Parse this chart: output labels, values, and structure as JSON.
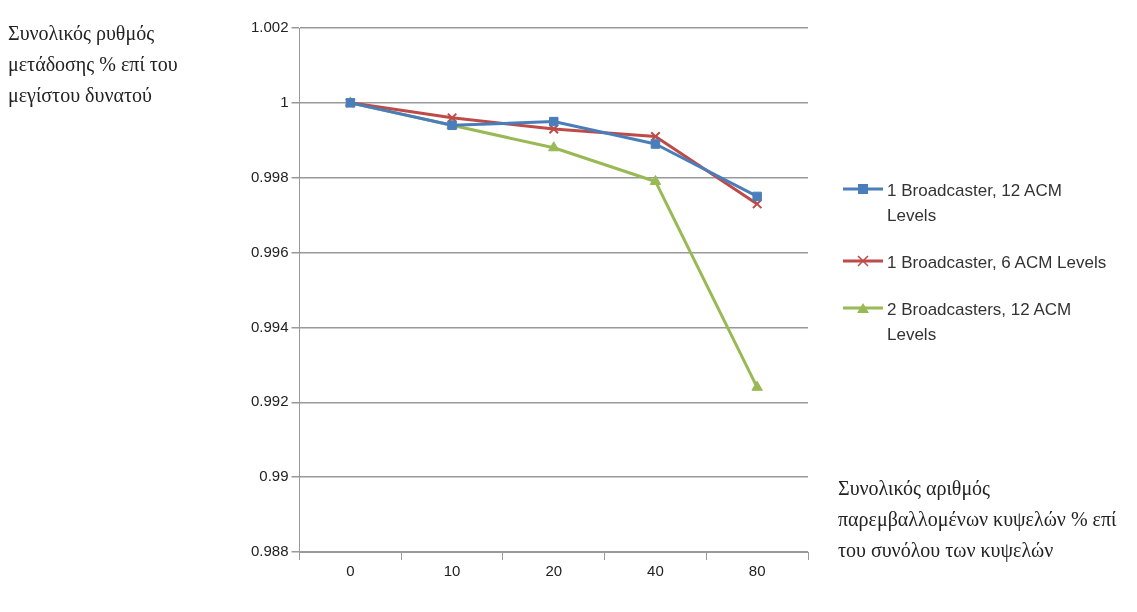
{
  "chart_data": {
    "type": "line",
    "ylabel": "Συνολικός ρυθμός μετάδοσης % επί του μεγίστου δυνατού",
    "xlabel": "Συνολικός αριθμός παρεμβαλλομένων κυψελών % επί του συνόλου των κυψελών",
    "categories": [
      "0",
      "10",
      "20",
      "40",
      "80"
    ],
    "series": [
      {
        "name": "1 Broadcaster, 12 ACM Levels",
        "color": "#4a7ebb",
        "marker": "square",
        "values": [
          1,
          0.9994,
          0.9995,
          0.9989,
          0.9975
        ]
      },
      {
        "name": "1 Broadcaster, 6 ACM Levels",
        "color": "#be4b48",
        "marker": "cross",
        "values": [
          1,
          0.9996,
          0.9993,
          0.9991,
          0.9973
        ]
      },
      {
        "name": "2 Broadcasters, 12 ACM Levels",
        "color": "#98b954",
        "marker": "triangle",
        "values": [
          1,
          0.9994,
          0.9988,
          0.9979,
          0.9924
        ]
      }
    ],
    "ylim": [
      0.988,
      1.002
    ],
    "yticks": [
      0.988,
      0.99,
      0.992,
      0.994,
      0.996,
      0.998,
      1,
      1.002
    ],
    "grid": "y",
    "legend": "right",
    "line_style": "solid"
  }
}
